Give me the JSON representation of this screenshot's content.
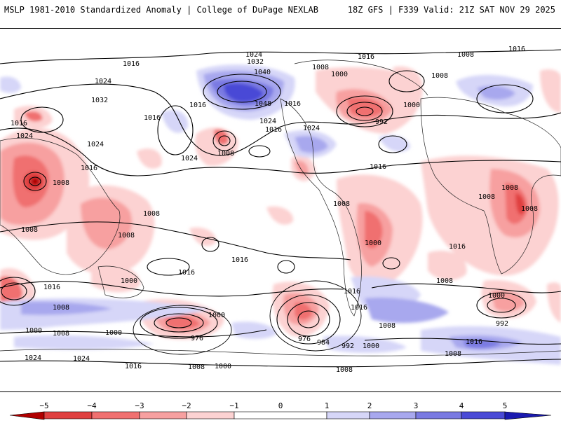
{
  "header": {
    "title_left": "MSLP 1981-2010 Standardized Anomaly | College of DuPage NEXLAB",
    "title_right": "18Z GFS | F339 Valid: 21Z SAT NOV 29 2025"
  },
  "colors": {
    "neg5": "#b00000",
    "neg4": "#e04040",
    "neg3": "#f07070",
    "neg2": "#f7a0a0",
    "neg1": "#fcd2d2",
    "pos1": "#d6d6f8",
    "pos2": "#a8a8ee",
    "pos3": "#7a7ae2",
    "pos4": "#4a4ad6",
    "pos5": "#1a1ab0",
    "contour": "#000000"
  },
  "colorbar": {
    "ticks": [
      "−5",
      "−4",
      "−3",
      "−2",
      "−1",
      "0",
      "1",
      "2",
      "3",
      "4",
      "5"
    ]
  },
  "isobar_labels": [
    {
      "text": "1016"
    },
    {
      "text": "1024"
    },
    {
      "text": "1032"
    },
    {
      "text": "1040"
    },
    {
      "text": "1008"
    },
    {
      "text": "1000"
    },
    {
      "text": "1016"
    },
    {
      "text": "1008"
    },
    {
      "text": "1016"
    },
    {
      "text": "1024"
    },
    {
      "text": "1032"
    },
    {
      "text": "1016"
    },
    {
      "text": "1048"
    },
    {
      "text": "1024"
    },
    {
      "text": "1016"
    },
    {
      "text": "1016"
    },
    {
      "text": "1024"
    },
    {
      "text": "1000"
    },
    {
      "text": "992"
    },
    {
      "text": "1008"
    },
    {
      "text": "1024"
    },
    {
      "text": "1024"
    },
    {
      "text": "1016"
    },
    {
      "text": "1008"
    },
    {
      "text": "1016"
    },
    {
      "text": "1024"
    },
    {
      "text": "1016"
    },
    {
      "text": "1008"
    },
    {
      "text": "1016"
    },
    {
      "text": "1008"
    },
    {
      "text": "1008"
    },
    {
      "text": "1008"
    },
    {
      "text": "1008"
    },
    {
      "text": "1016"
    },
    {
      "text": "1016"
    },
    {
      "text": "1000"
    },
    {
      "text": "1016"
    },
    {
      "text": "1008"
    },
    {
      "text": "1016"
    },
    {
      "text": "1008"
    },
    {
      "text": "1008"
    },
    {
      "text": "1000"
    },
    {
      "text": "1016"
    },
    {
      "text": "1008"
    },
    {
      "text": "1008"
    },
    {
      "text": "1000"
    },
    {
      "text": "992"
    },
    {
      "text": "1000"
    },
    {
      "text": "1000"
    },
    {
      "text": "976"
    },
    {
      "text": "976"
    },
    {
      "text": "984"
    },
    {
      "text": "992"
    },
    {
      "text": "1000"
    },
    {
      "text": "1008"
    },
    {
      "text": "1000"
    },
    {
      "text": "1024"
    },
    {
      "text": "1024"
    },
    {
      "text": "1016"
    },
    {
      "text": "1008"
    },
    {
      "text": "1000"
    },
    {
      "text": "1008"
    },
    {
      "text": "1016"
    },
    {
      "text": "1008"
    },
    {
      "text": "1016"
    },
    {
      "text": "1008"
    }
  ]
}
